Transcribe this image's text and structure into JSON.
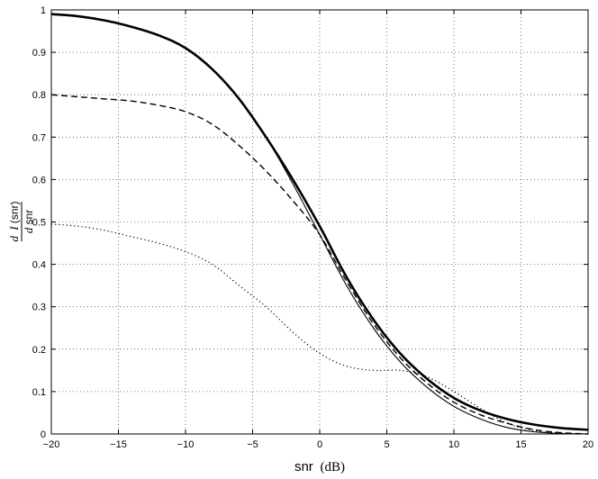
{
  "chart_data": {
    "type": "line",
    "xlabel": {
      "var": "snr",
      "unit": "(dB)"
    },
    "ylabel": {
      "numerator_d": "d",
      "numerator_fn": "I",
      "arg": "(snr)",
      "denominator_d": "d",
      "denominator_var": "snr"
    },
    "xlim": [
      -20,
      20
    ],
    "ylim": [
      0,
      1
    ],
    "xticks": [
      -20,
      -15,
      -10,
      -5,
      0,
      5,
      10,
      15,
      20
    ],
    "xtick_labels": [
      "−20",
      "−15",
      "−10",
      "−5",
      "0",
      "5",
      "10",
      "15",
      "20"
    ],
    "yticks": [
      0,
      0.1,
      0.2,
      0.3,
      0.4,
      0.5,
      0.6,
      0.7,
      0.8,
      0.9,
      1
    ],
    "ytick_labels": [
      "0",
      "0.1",
      "0.2",
      "0.3",
      "0.4",
      "0.5",
      "0.6",
      "0.7",
      "0.8",
      "0.9",
      "1"
    ],
    "grid": true,
    "series": [
      {
        "style": "thick-solid",
        "x": [
          -20,
          -18,
          -16,
          -14,
          -12,
          -10,
          -8,
          -6,
          -4,
          -2,
          0,
          2,
          4,
          6,
          8,
          10,
          12,
          14,
          16,
          18,
          20
        ],
        "y": [
          0.99,
          0.985,
          0.975,
          0.96,
          0.94,
          0.91,
          0.86,
          0.79,
          0.7,
          0.6,
          0.49,
          0.37,
          0.27,
          0.19,
          0.13,
          0.085,
          0.055,
          0.035,
          0.022,
          0.014,
          0.01
        ]
      },
      {
        "style": "thin-solid",
        "x": [
          -20,
          -18,
          -16,
          -14,
          -12,
          -10,
          -8,
          -6,
          -4,
          -2,
          0,
          2,
          4,
          6,
          8,
          10,
          12,
          14,
          16,
          18,
          20
        ],
        "y": [
          0.99,
          0.985,
          0.975,
          0.96,
          0.94,
          0.91,
          0.86,
          0.79,
          0.7,
          0.59,
          0.47,
          0.35,
          0.25,
          0.17,
          0.11,
          0.065,
          0.035,
          0.015,
          0.005,
          0.001,
          0.0
        ]
      },
      {
        "style": "dashed",
        "x": [
          -20,
          -18,
          -16,
          -14,
          -12,
          -10,
          -8,
          -6,
          -4,
          -2,
          0,
          2,
          4,
          6,
          8,
          10,
          12,
          14,
          16,
          18,
          20
        ],
        "y": [
          0.8,
          0.795,
          0.79,
          0.785,
          0.775,
          0.76,
          0.73,
          0.68,
          0.62,
          0.55,
          0.47,
          0.36,
          0.26,
          0.18,
          0.12,
          0.075,
          0.045,
          0.025,
          0.01,
          0.003,
          0.0
        ]
      },
      {
        "style": "dotted",
        "x": [
          -20,
          -18,
          -16,
          -14,
          -12,
          -10,
          -8,
          -6,
          -4,
          -2,
          0,
          2,
          4,
          6,
          8,
          10,
          12,
          14,
          16,
          18,
          20
        ],
        "y": [
          0.495,
          0.49,
          0.48,
          0.465,
          0.45,
          0.43,
          0.4,
          0.35,
          0.3,
          0.24,
          0.19,
          0.16,
          0.15,
          0.15,
          0.135,
          0.1,
          0.06,
          0.025,
          0.008,
          0.002,
          0.0
        ]
      }
    ]
  }
}
